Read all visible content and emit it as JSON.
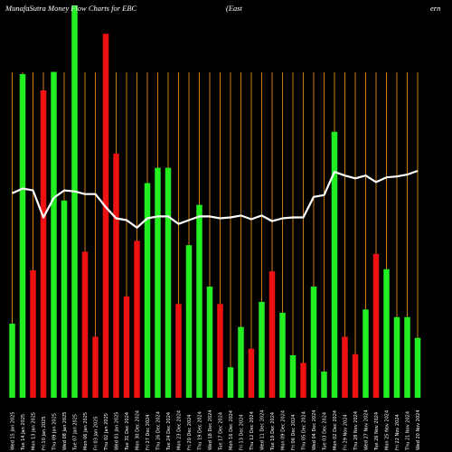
{
  "title": {
    "left": "MunafaSutra  Money Flow  Charts for EBC",
    "mid": "(East",
    "right": "ern"
  },
  "colors": {
    "background": "#000000",
    "grid": "#c87a14",
    "up": "#22ee22",
    "down": "#ee1111",
    "line": "#ffffff"
  },
  "chart_data": {
    "type": "bar",
    "ylim": [
      0,
      360
    ],
    "bars": [
      {
        "label": "Wed 15 Jan 2025",
        "volume": 68,
        "color": "up"
      },
      {
        "label": "Tue 14 Jan 2025",
        "volume": 297,
        "color": "up"
      },
      {
        "label": "Mon 13 Jan 2025",
        "volume": 117,
        "color": "down"
      },
      {
        "label": "Fri 10 Jan 2025",
        "volume": 282,
        "color": "down"
      },
      {
        "label": "Thu 09 Jan 2025",
        "volume": 299,
        "color": "up"
      },
      {
        "label": "Wed 08 Jan 2025",
        "volume": 181,
        "color": "up"
      },
      {
        "label": "Tue 07 Jan 2025",
        "volume": 360,
        "color": "up"
      },
      {
        "label": "Mon 06 Jan 2025",
        "volume": 134,
        "color": "down"
      },
      {
        "label": "Fri 03 Jan 2025",
        "volume": 56,
        "color": "down"
      },
      {
        "label": "Thu 02 Jan 2025",
        "volume": 334,
        "color": "down"
      },
      {
        "label": "Wed 01 Jan 2025",
        "volume": 224,
        "color": "down"
      },
      {
        "label": "Tue 31 Dec 2024",
        "volume": 93,
        "color": "down"
      },
      {
        "label": "Mon 30 Dec 2024",
        "volume": 144,
        "color": "down"
      },
      {
        "label": "Fri 27 Dec 2024",
        "volume": 197,
        "color": "up"
      },
      {
        "label": "Thu 26 Dec 2024",
        "volume": 211,
        "color": "up"
      },
      {
        "label": "Tue 24 Dec 2024",
        "volume": 211,
        "color": "up"
      },
      {
        "label": "Mon 23 Dec 2024",
        "volume": 86,
        "color": "down"
      },
      {
        "label": "Fri 20 Dec 2024",
        "volume": 140,
        "color": "up"
      },
      {
        "label": "Thu 19 Dec 2024",
        "volume": 177,
        "color": "up"
      },
      {
        "label": "Wed 18 Dec 2024",
        "volume": 102,
        "color": "up"
      },
      {
        "label": "Tue 17 Dec 2024",
        "volume": 86,
        "color": "down"
      },
      {
        "label": "Mon 16 Dec 2024",
        "volume": 28,
        "color": "up"
      },
      {
        "label": "Fri 13 Dec 2024",
        "volume": 65,
        "color": "up"
      },
      {
        "label": "Thu 12 Dec 2024",
        "volume": 45,
        "color": "down"
      },
      {
        "label": "Wed 11 Dec 2024",
        "volume": 88,
        "color": "up"
      },
      {
        "label": "Tue 10 Dec 2024",
        "volume": 116,
        "color": "down"
      },
      {
        "label": "Mon 09 Dec 2024",
        "volume": 78,
        "color": "up"
      },
      {
        "label": "Fri 06 Dec 2024",
        "volume": 39,
        "color": "up"
      },
      {
        "label": "Thu 05 Dec 2024",
        "volume": 32,
        "color": "down"
      },
      {
        "label": "Wed 04 Dec 2024",
        "volume": 102,
        "color": "up"
      },
      {
        "label": "Tue 03 Dec 2024",
        "volume": 24,
        "color": "up"
      },
      {
        "label": "Mon 02 Dec 2024",
        "volume": 244,
        "color": "up"
      },
      {
        "label": "Fri 29 Nov 2024",
        "volume": 56,
        "color": "down"
      },
      {
        "label": "Thu 28 Nov 2024",
        "volume": 40,
        "color": "down"
      },
      {
        "label": "Wed 27 Nov 2024",
        "volume": 81,
        "color": "up"
      },
      {
        "label": "Tue 26 Nov 2024",
        "volume": 132,
        "color": "down"
      },
      {
        "label": "Mon 25 Nov 2024",
        "volume": 118,
        "color": "up"
      },
      {
        "label": "Fri 22 Nov 2024",
        "volume": 74,
        "color": "up"
      },
      {
        "label": "Thu 21 Nov 2024",
        "volume": 74,
        "color": "up"
      },
      {
        "label": "Wed 20 Nov 2024",
        "volume": 55,
        "color": "up"
      }
    ],
    "price_line": [
      57,
      57.5,
      57.3,
      54.4,
      56.5,
      57.3,
      57.2,
      56.9,
      56.9,
      55.5,
      54.3,
      54.1,
      53.3,
      54.3,
      54.5,
      54.5,
      53.7,
      54.1,
      54.5,
      54.5,
      54.3,
      54.4,
      54.6,
      54.2,
      54.6,
      54,
      54.3,
      54.4,
      54.4,
      56.6,
      56.8,
      59.3,
      58.9,
      58.6,
      58.9,
      58.2,
      58.7,
      58.8,
      59,
      59.4
    ],
    "price_range": [
      35,
      70
    ]
  }
}
